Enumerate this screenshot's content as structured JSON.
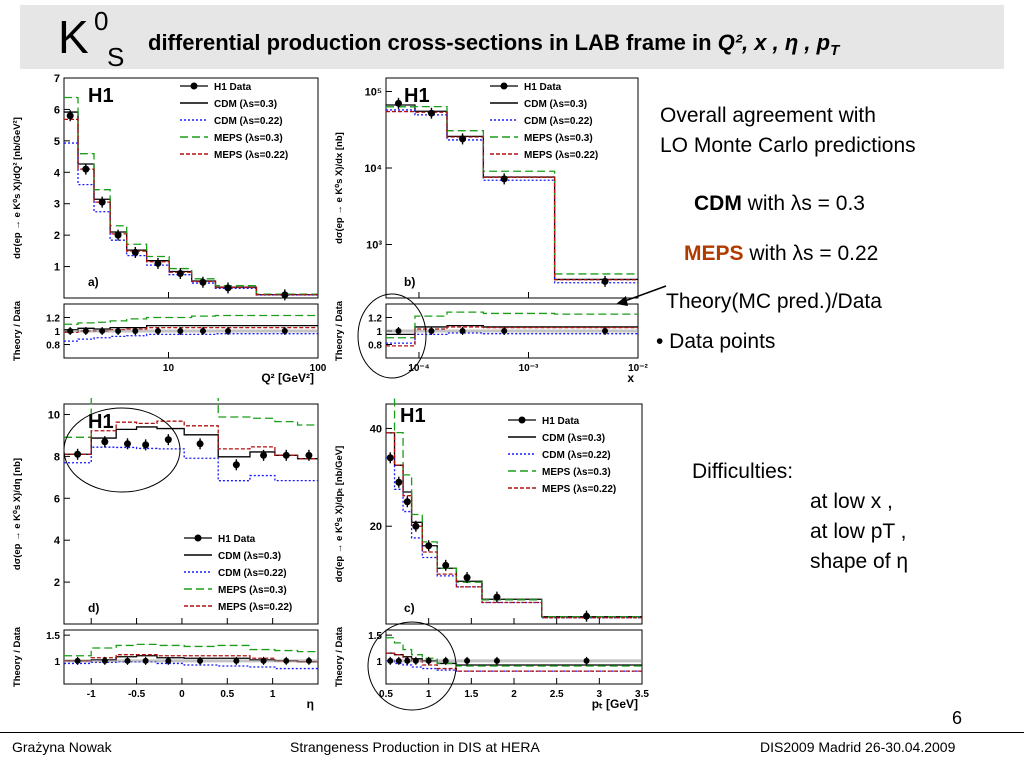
{
  "slide": {
    "title_symbol": "K",
    "title_sup": "0",
    "title_sub": "S",
    "title_main": "differential production cross-sections in LAB  frame  in ",
    "title_vars": "Q², x , η , p",
    "title_vars_sub": "T",
    "page_number": "6"
  },
  "notes": {
    "agreement_line1": "Overall agreement  with",
    "agreement_line2": "LO Monte Carlo predictions",
    "cdm_label": "CDM",
    "cdm_text": "with λs = 0.3",
    "meps_label": "MEPS",
    "meps_text": "with λs = 0.22",
    "ratio_text": "Theory(MC pred.)/Data",
    "points_text": "• Data points",
    "difficulties_title": "Difficulties:",
    "difficulty_1": "at  low x ,",
    "difficulty_2": "at  low pT ,",
    "difficulty_3": "shape of η"
  },
  "footer": {
    "left": "Grażyna Nowak",
    "center": "Strangeness Production in DIS at HERA",
    "right": "DIS2009 Madrid 26-30.04.2009"
  },
  "legend": {
    "data": "H1 Data",
    "cdm03": "CDM (λs=0.3)",
    "cdm022": "CDM (λs=0.22)",
    "meps03": "MEPS (λs=0.3)",
    "meps022": "MEPS (λs=0.22)"
  },
  "colors": {
    "cdm03": "#000000",
    "cdm022": "#1a1aff",
    "meps03": "#1a9e1a",
    "meps022": "#b01010",
    "data": "#000000",
    "title_bg": "#e6e6e6",
    "meps_text": "#b03a00"
  },
  "chart_data": [
    {
      "id": "a",
      "type": "scatter",
      "title": "H1",
      "panel_label": "a)",
      "xlabel": "Q² [GeV²]",
      "ylabel": "dσ(ep → e K⁰s X)/dQ² [nb/GeV²]",
      "xscale": "log",
      "xlim": [
        2,
        100
      ],
      "ylim": [
        0,
        7
      ],
      "yticks": [
        1,
        2,
        3,
        4,
        5,
        6,
        7
      ],
      "xticks": [
        10,
        100
      ],
      "x": [
        2.2,
        2.8,
        3.6,
        4.6,
        6.0,
        8.5,
        12,
        17,
        25,
        60
      ],
      "y": [
        5.8,
        4.1,
        3.05,
        2.0,
        1.45,
        1.1,
        0.78,
        0.5,
        0.32,
        0.1
      ],
      "ratio_ylabel": "Theory / Data",
      "ratio_ylim": [
        0.6,
        1.4
      ],
      "ratio_yticks": [
        0.8,
        1,
        1.2
      ],
      "ratio_x": [
        2.2,
        2.8,
        3.6,
        4.6,
        6.0,
        8.5,
        12,
        17,
        25,
        60
      ],
      "ratio": [
        {
          "name": "CDM (λs=0.3)",
          "values": [
            1.02,
            1.04,
            1.03,
            1.05,
            1.05,
            1.08,
            1.08,
            1.08,
            1.08,
            1.08
          ]
        },
        {
          "name": "CDM (λs=0.22)",
          "values": [
            0.85,
            0.88,
            0.9,
            0.92,
            0.93,
            0.95,
            0.95,
            0.95,
            0.96,
            0.96
          ]
        },
        {
          "name": "MEPS (λs=0.3)",
          "values": [
            1.1,
            1.12,
            1.13,
            1.15,
            1.18,
            1.2,
            1.2,
            1.22,
            1.23,
            1.23
          ]
        },
        {
          "name": "MEPS (λs=0.22)",
          "values": [
            0.98,
            1.0,
            1.0,
            1.02,
            1.03,
            1.05,
            1.05,
            1.05,
            1.05,
            1.05
          ]
        }
      ]
    },
    {
      "id": "b",
      "type": "scatter",
      "title": "H1",
      "panel_label": "b)",
      "xlabel": "x",
      "ylabel": "dσ(ep → e K⁰s X)/dx [nb]",
      "xscale": "log",
      "yscale": "log",
      "xlim": [
        5e-05,
        0.01
      ],
      "ylim": [
        200,
        150000
      ],
      "yticks": [
        1000,
        10000,
        100000
      ],
      "ytick_labels": [
        "10³",
        "10⁴",
        "10⁵"
      ],
      "xticks": [
        0.0001,
        0.001,
        0.01
      ],
      "xtick_labels": [
        "10⁻⁴",
        "10⁻³",
        "10⁻²"
      ],
      "x": [
        6.5e-05,
        0.00013,
        0.00025,
        0.0006,
        0.005
      ],
      "y": [
        70000,
        52000,
        24000,
        7200,
        330
      ],
      "ratio_ylabel": "Theory / Data",
      "ratio_ylim": [
        0.6,
        1.4
      ],
      "ratio_yticks": [
        0.8,
        1,
        1.2
      ],
      "ratio_x": [
        6.5e-05,
        0.00013,
        0.00025,
        0.0006,
        0.005
      ],
      "ratio": [
        {
          "name": "CDM (λs=0.3)",
          "values": [
            0.95,
            1.06,
            1.08,
            1.06,
            1.06
          ]
        },
        {
          "name": "CDM (λs=0.22)",
          "values": [
            0.82,
            0.95,
            0.97,
            0.96,
            0.96
          ]
        },
        {
          "name": "MEPS (λs=0.3)",
          "values": [
            0.9,
            1.22,
            1.28,
            1.26,
            1.25
          ]
        },
        {
          "name": "MEPS (λs=0.22)",
          "values": [
            0.78,
            1.03,
            1.06,
            1.05,
            1.05
          ]
        }
      ]
    },
    {
      "id": "d",
      "type": "scatter",
      "title": "H1",
      "panel_label": "d)",
      "xlabel": "η",
      "ylabel": "dσ(ep → e K⁰s X)/dη [nb]",
      "xlim": [
        -1.3,
        1.5
      ],
      "ylim": [
        0,
        10.5
      ],
      "yticks": [
        2,
        4,
        6,
        8,
        10
      ],
      "xticks": [
        -1,
        -0.5,
        0,
        0.5,
        1
      ],
      "x": [
        -1.15,
        -0.85,
        -0.6,
        -0.4,
        -0.15,
        0.2,
        0.6,
        0.9,
        1.15,
        1.4
      ],
      "y": [
        8.1,
        8.7,
        8.6,
        8.55,
        8.8,
        8.6,
        7.6,
        8.05,
        8.05,
        8.05
      ],
      "ratio_ylabel": "Theory / Data",
      "ratio_ylim": [
        0.55,
        1.6
      ],
      "ratio_yticks": [
        1,
        1.5
      ],
      "ratio_x": [
        -1.15,
        -0.85,
        -0.6,
        -0.4,
        -0.15,
        0.2,
        0.6,
        0.9,
        1.15,
        1.4
      ],
      "ratio": [
        {
          "name": "CDM (λs=0.3)",
          "values": [
            1.0,
            1.02,
            1.08,
            1.1,
            1.06,
            1.05,
            1.05,
            1.02,
            1.0,
            0.98
          ]
        },
        {
          "name": "CDM (λs=0.22)",
          "values": [
            0.95,
            0.97,
            0.98,
            0.98,
            0.95,
            0.92,
            0.9,
            0.88,
            0.85,
            0.85
          ]
        },
        {
          "name": "MEPS (λs=0.3)",
          "values": [
            1.1,
            1.25,
            1.3,
            1.32,
            1.3,
            1.28,
            1.3,
            1.22,
            1.2,
            1.18
          ]
        },
        {
          "name": "MEPS (λs=0.22)",
          "values": [
            1.0,
            1.06,
            1.12,
            1.12,
            1.1,
            1.1,
            1.1,
            1.05,
            1.0,
            0.98
          ]
        }
      ]
    },
    {
      "id": "c",
      "type": "scatter",
      "title": "H1",
      "panel_label": "c)",
      "xlabel": "pₜ [GeV]",
      "ylabel": "dσ(ep → e K⁰s X)/dpₜ [nb/GeV]",
      "xlim": [
        0.5,
        3.5
      ],
      "ylim": [
        0,
        45
      ],
      "yticks": [
        20,
        40
      ],
      "xticks": [
        0.5,
        1,
        1.5,
        2,
        2.5,
        3,
        3.5
      ],
      "x": [
        0.55,
        0.65,
        0.75,
        0.85,
        1.0,
        1.2,
        1.45,
        1.8,
        2.85
      ],
      "y": [
        34,
        29,
        25,
        20,
        16,
        12,
        9.5,
        5.5,
        1.6
      ],
      "ratio_ylabel": "Theory / Data",
      "ratio_ylim": [
        0.55,
        1.6
      ],
      "ratio_yticks": [
        1,
        1.5
      ],
      "ratio_x": [
        0.55,
        0.65,
        0.75,
        0.85,
        1.0,
        1.2,
        1.45,
        1.8,
        2.85
      ],
      "ratio": [
        {
          "name": "CDM (λs=0.3)",
          "values": [
            1.15,
            1.12,
            1.08,
            1.04,
            1.0,
            0.95,
            0.92,
            0.92,
            0.92
          ]
        },
        {
          "name": "CDM (λs=0.22)",
          "values": [
            1.0,
            0.95,
            0.92,
            0.88,
            0.85,
            0.82,
            0.8,
            0.8,
            0.8
          ]
        },
        {
          "name": "MEPS (λs=0.3)",
          "values": [
            1.45,
            1.35,
            1.22,
            1.12,
            1.05,
            0.95,
            0.9,
            0.9,
            0.9
          ]
        },
        {
          "name": "MEPS (λs=0.22)",
          "values": [
            1.15,
            1.12,
            1.05,
            1.0,
            0.92,
            0.85,
            0.8,
            0.8,
            0.8
          ]
        }
      ]
    }
  ]
}
